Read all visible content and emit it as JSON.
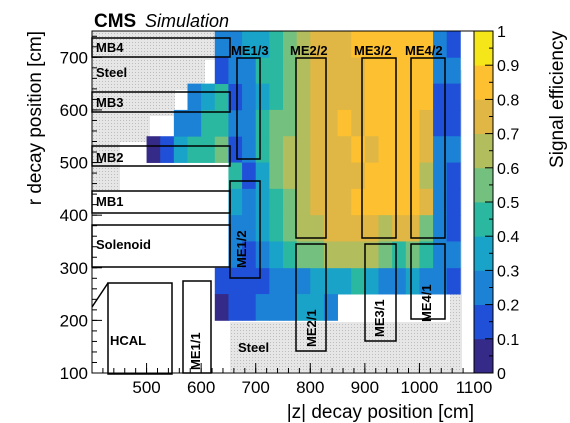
{
  "chart_data": {
    "type": "heatmap",
    "header": {
      "experiment": "CMS",
      "tag": "Simulation"
    },
    "xlabel": "|z| decay position [cm]",
    "ylabel": "r decay position [cm]",
    "colorbar_label": "Signal efficiency",
    "xlim": [
      400,
      1100
    ],
    "ylim": [
      100,
      750
    ],
    "zlim": [
      0,
      1
    ],
    "x_ticks": [
      500,
      600,
      700,
      800,
      900,
      1000,
      1100
    ],
    "y_ticks": [
      100,
      200,
      300,
      400,
      500,
      600,
      700
    ],
    "z_ticks": [
      0,
      0.1,
      0.2,
      0.3,
      0.4,
      0.5,
      0.6,
      0.7,
      0.8,
      0.9,
      1
    ],
    "colormap": [
      "#352a87",
      "#2050d8",
      "#1c82d6",
      "#1aa3c8",
      "#2bb8a0",
      "#74c07e",
      "#b2bd5d",
      "#e0b744",
      "#fcc030",
      "#f5e61a"
    ],
    "bin_width_x": 25,
    "bin_width_y": 50,
    "cells": [
      [
        500,
        500,
        0.08
      ],
      [
        525,
        500,
        0.12
      ],
      [
        550,
        500,
        0.38
      ],
      [
        575,
        500,
        0.4
      ],
      [
        600,
        500,
        0.45
      ],
      [
        625,
        500,
        0.52
      ],
      [
        650,
        500,
        0.15
      ],
      [
        550,
        550,
        0.25
      ],
      [
        575,
        550,
        0.28
      ],
      [
        600,
        550,
        0.4
      ],
      [
        625,
        550,
        0.45
      ],
      [
        650,
        550,
        0.2
      ],
      [
        575,
        600,
        0.22
      ],
      [
        600,
        600,
        0.3
      ],
      [
        625,
        600,
        0.42
      ],
      [
        650,
        600,
        0.18
      ],
      [
        625,
        650,
        0.18
      ],
      [
        650,
        650,
        0.2
      ],
      [
        625,
        700,
        0.22
      ],
      [
        650,
        700,
        0.25
      ],
      [
        650,
        450,
        0.45
      ],
      [
        650,
        400,
        0.35
      ],
      [
        650,
        350,
        0.22
      ],
      [
        650,
        300,
        0.2
      ],
      [
        625,
        250,
        0.15
      ],
      [
        650,
        250,
        0.18
      ],
      [
        675,
        250,
        0.12
      ],
      [
        700,
        250,
        0.14
      ],
      [
        725,
        250,
        0.2
      ],
      [
        750,
        250,
        0.22
      ],
      [
        775,
        250,
        0.25
      ],
      [
        800,
        250,
        0.3
      ],
      [
        825,
        250,
        0.35
      ],
      [
        850,
        250,
        0.38
      ],
      [
        875,
        250,
        0.4
      ],
      [
        900,
        250,
        0.35
      ],
      [
        925,
        250,
        0.28
      ],
      [
        950,
        250,
        0.22
      ],
      [
        975,
        250,
        0.3
      ],
      [
        1000,
        250,
        0.25
      ],
      [
        1025,
        250,
        0.2
      ],
      [
        1050,
        250,
        0.15
      ],
      [
        625,
        200,
        0.08
      ],
      [
        650,
        200,
        0.1
      ],
      [
        675,
        200,
        0.15
      ],
      [
        700,
        200,
        0.2
      ],
      [
        725,
        200,
        0.22
      ],
      [
        750,
        200,
        0.28
      ],
      [
        775,
        200,
        0.35
      ],
      [
        800,
        200,
        0.3
      ],
      [
        825,
        200,
        0.25
      ],
      [
        675,
        650,
        0.22
      ],
      [
        700,
        650,
        0.4
      ],
      [
        725,
        650,
        0.45
      ],
      [
        750,
        650,
        0.55
      ],
      [
        775,
        650,
        0.62
      ],
      [
        800,
        650,
        0.7
      ],
      [
        825,
        650,
        0.72
      ],
      [
        850,
        650,
        0.75
      ],
      [
        875,
        650,
        0.78
      ],
      [
        900,
        650,
        0.8
      ],
      [
        925,
        650,
        0.82
      ],
      [
        950,
        650,
        0.8
      ],
      [
        975,
        650,
        0.82
      ],
      [
        1000,
        650,
        0.85
      ],
      [
        1025,
        650,
        0.2
      ],
      [
        1050,
        650,
        0.22
      ],
      [
        675,
        700,
        0.3
      ],
      [
        700,
        700,
        0.35
      ],
      [
        725,
        700,
        0.45
      ],
      [
        750,
        700,
        0.58
      ],
      [
        775,
        700,
        0.65
      ],
      [
        800,
        700,
        0.72
      ],
      [
        825,
        700,
        0.75
      ],
      [
        850,
        700,
        0.78
      ],
      [
        875,
        700,
        0.8
      ],
      [
        900,
        700,
        0.82
      ],
      [
        925,
        700,
        0.84
      ],
      [
        950,
        700,
        0.85
      ],
      [
        975,
        700,
        0.8
      ],
      [
        1000,
        700,
        0.82
      ],
      [
        1025,
        700,
        0.22
      ],
      [
        1050,
        700,
        0.18
      ],
      [
        675,
        600,
        0.2
      ],
      [
        700,
        600,
        0.35
      ],
      [
        725,
        600,
        0.48
      ],
      [
        750,
        600,
        0.56
      ],
      [
        775,
        600,
        0.62
      ],
      [
        800,
        600,
        0.7
      ],
      [
        825,
        600,
        0.74
      ],
      [
        850,
        600,
        0.78
      ],
      [
        875,
        600,
        0.76
      ],
      [
        900,
        600,
        0.8
      ],
      [
        925,
        600,
        0.8
      ],
      [
        950,
        600,
        0.82
      ],
      [
        975,
        600,
        0.84
      ],
      [
        1000,
        600,
        0.8
      ],
      [
        1025,
        600,
        0.15
      ],
      [
        1050,
        600,
        0.18
      ],
      [
        675,
        550,
        0.25
      ],
      [
        700,
        550,
        0.4
      ],
      [
        725,
        550,
        0.5
      ],
      [
        750,
        550,
        0.58
      ],
      [
        775,
        550,
        0.64
      ],
      [
        800,
        550,
        0.72
      ],
      [
        825,
        550,
        0.75
      ],
      [
        850,
        550,
        0.8
      ],
      [
        875,
        550,
        0.78
      ],
      [
        900,
        550,
        0.82
      ],
      [
        925,
        550,
        0.8
      ],
      [
        950,
        550,
        0.8
      ],
      [
        975,
        550,
        0.85
      ],
      [
        1000,
        550,
        0.72
      ],
      [
        1025,
        550,
        0.18
      ],
      [
        1050,
        550,
        0.15
      ],
      [
        675,
        500,
        0.22
      ],
      [
        700,
        500,
        0.42
      ],
      [
        725,
        500,
        0.5
      ],
      [
        750,
        500,
        0.6
      ],
      [
        775,
        500,
        0.66
      ],
      [
        800,
        500,
        0.72
      ],
      [
        825,
        500,
        0.76
      ],
      [
        850,
        500,
        0.75
      ],
      [
        875,
        500,
        0.8
      ],
      [
        900,
        500,
        0.78
      ],
      [
        925,
        500,
        0.82
      ],
      [
        950,
        500,
        0.8
      ],
      [
        975,
        500,
        0.82
      ],
      [
        1000,
        500,
        0.75
      ],
      [
        1025,
        500,
        0.2
      ],
      [
        1050,
        500,
        0.22
      ],
      [
        675,
        450,
        0.18
      ],
      [
        700,
        450,
        0.38
      ],
      [
        725,
        450,
        0.52
      ],
      [
        750,
        450,
        0.6
      ],
      [
        775,
        450,
        0.66
      ],
      [
        800,
        450,
        0.72
      ],
      [
        825,
        450,
        0.78
      ],
      [
        850,
        450,
        0.76
      ],
      [
        875,
        450,
        0.78
      ],
      [
        900,
        450,
        0.8
      ],
      [
        925,
        450,
        0.82
      ],
      [
        950,
        450,
        0.84
      ],
      [
        975,
        450,
        0.8
      ],
      [
        1000,
        450,
        0.65
      ],
      [
        1025,
        450,
        0.22
      ],
      [
        1050,
        450,
        0.18
      ],
      [
        675,
        400,
        0.22
      ],
      [
        700,
        400,
        0.35
      ],
      [
        725,
        400,
        0.48
      ],
      [
        750,
        400,
        0.58
      ],
      [
        775,
        400,
        0.65
      ],
      [
        800,
        400,
        0.74
      ],
      [
        825,
        400,
        0.76
      ],
      [
        850,
        400,
        0.78
      ],
      [
        875,
        400,
        0.8
      ],
      [
        900,
        400,
        0.82
      ],
      [
        925,
        400,
        0.8
      ],
      [
        950,
        400,
        0.82
      ],
      [
        975,
        400,
        0.84
      ],
      [
        1000,
        400,
        0.7
      ],
      [
        1025,
        400,
        0.2
      ],
      [
        1050,
        400,
        0.16
      ],
      [
        675,
        350,
        0.2
      ],
      [
        700,
        350,
        0.3
      ],
      [
        725,
        350,
        0.42
      ],
      [
        750,
        350,
        0.52
      ],
      [
        775,
        350,
        0.6
      ],
      [
        800,
        350,
        0.65
      ],
      [
        825,
        350,
        0.7
      ],
      [
        850,
        350,
        0.72
      ],
      [
        875,
        350,
        0.74
      ],
      [
        900,
        350,
        0.72
      ],
      [
        925,
        350,
        0.68
      ],
      [
        950,
        350,
        0.7
      ],
      [
        975,
        350,
        0.72
      ],
      [
        1000,
        350,
        0.55
      ],
      [
        1025,
        350,
        0.2
      ],
      [
        1050,
        350,
        0.18
      ],
      [
        675,
        300,
        0.15
      ],
      [
        700,
        300,
        0.22
      ],
      [
        725,
        300,
        0.32
      ],
      [
        750,
        300,
        0.42
      ],
      [
        775,
        300,
        0.5
      ],
      [
        800,
        300,
        0.55
      ],
      [
        825,
        300,
        0.6
      ],
      [
        850,
        300,
        0.62
      ],
      [
        875,
        300,
        0.65
      ],
      [
        900,
        300,
        0.6
      ],
      [
        925,
        300,
        0.52
      ],
      [
        950,
        300,
        0.48
      ],
      [
        975,
        300,
        0.5
      ],
      [
        1000,
        300,
        0.4
      ],
      [
        1025,
        300,
        0.22
      ],
      [
        1050,
        300,
        0.2
      ]
    ],
    "annotations": [
      {
        "text": "MB4"
      },
      {
        "text": "Steel"
      },
      {
        "text": "MB3"
      },
      {
        "text": "MB2"
      },
      {
        "text": "MB1"
      },
      {
        "text": "Solenoid"
      },
      {
        "text": "HCAL"
      },
      {
        "text": "ME1/1"
      },
      {
        "text": "Steel"
      },
      {
        "text": "ME1/2"
      },
      {
        "text": "ME1/3"
      },
      {
        "text": "ME2/2"
      },
      {
        "text": "ME2/1"
      },
      {
        "text": "ME3/2"
      },
      {
        "text": "ME3/1"
      },
      {
        "text": "ME4/2"
      },
      {
        "text": "ME4/1"
      }
    ]
  }
}
